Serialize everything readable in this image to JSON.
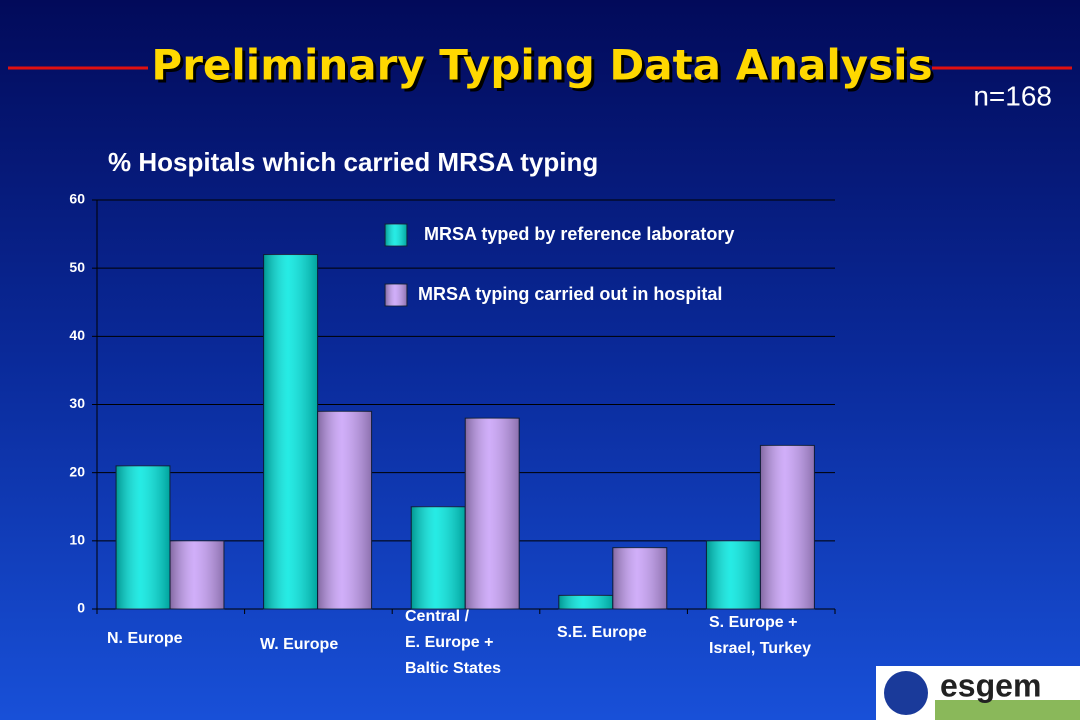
{
  "chart_data": {
    "type": "bar",
    "title": "Preliminary Typing Data Analysis",
    "annotation": "n=168",
    "subtitle": "% Hospitals which carried MRSA typing",
    "logo": "esgem",
    "categories": [
      "N. Europe",
      "W. Europe",
      "Central /\nE. Europe +\nBaltic States",
      "S.E. Europe",
      "S. Europe +\nIsrael, Turkey"
    ],
    "series": [
      {
        "name": "MRSA typed by reference laboratory",
        "color": "#00e8e0",
        "values": [
          21,
          52,
          15,
          2,
          10
        ]
      },
      {
        "name": "MRSA typing carried out in hospital",
        "color": "#c8a0f8",
        "values": [
          10,
          29,
          28,
          9,
          24
        ]
      }
    ],
    "ylim": [
      0,
      60
    ],
    "yticks": [
      0,
      10,
      20,
      30,
      40,
      50,
      60
    ],
    "grid": true
  }
}
